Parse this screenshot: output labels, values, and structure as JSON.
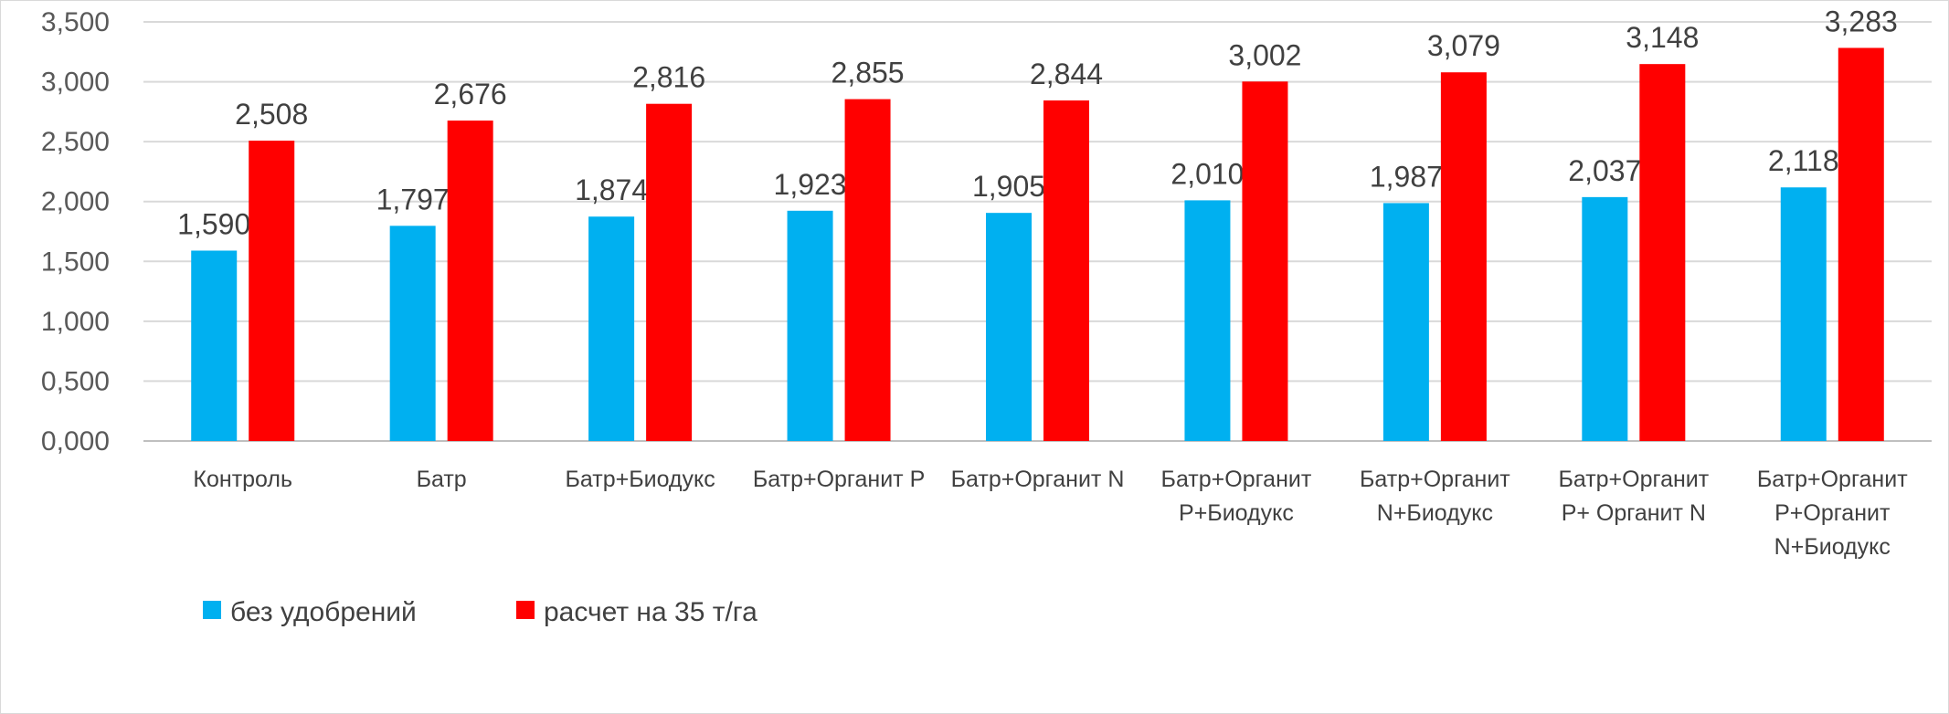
{
  "chart_data": {
    "type": "bar",
    "categories": [
      [
        "Контроль"
      ],
      [
        "Батр"
      ],
      [
        "Батр+Биодукс"
      ],
      [
        "Батр+Органит Р"
      ],
      [
        "Батр+Органит N"
      ],
      [
        "Батр+Органит",
        "Р+Биодукс"
      ],
      [
        "Батр+Органит",
        "N+Биодукс"
      ],
      [
        "Батр+Органит",
        "Р+ Органит N"
      ],
      [
        "Батр+Органит",
        "Р+Органит",
        "N+Биодукс"
      ]
    ],
    "series": [
      {
        "name": "без удобрений",
        "color": "#00b0f0",
        "values": [
          1.59,
          1.797,
          1.874,
          1.923,
          1.905,
          2.01,
          1.987,
          2.037,
          2.118
        ],
        "labels": [
          "1,590",
          "1,797",
          "1,874",
          "1,923",
          "1,905",
          "2,010",
          "1,987",
          "2,037",
          "2,118"
        ]
      },
      {
        "name": "расчет на 35 т/га",
        "color": "#ff0000",
        "values": [
          2.508,
          2.676,
          2.816,
          2.855,
          2.844,
          3.002,
          3.079,
          3.148,
          3.283
        ],
        "labels": [
          "2,508",
          "2,676",
          "2,816",
          "2,855",
          "2,844",
          "3,002",
          "3,079",
          "3,148",
          "3,283"
        ]
      }
    ],
    "ylim": [
      0,
      3.5
    ],
    "yticks": [
      0,
      0.5,
      1,
      1.5,
      2,
      2.5,
      3,
      3.5
    ],
    "ytick_labels": [
      "0,000",
      "0,500",
      "1,000",
      "1,500",
      "2,000",
      "2,500",
      "3,000",
      "3,500"
    ],
    "grid": true,
    "legend_position": "bottom-left"
  }
}
